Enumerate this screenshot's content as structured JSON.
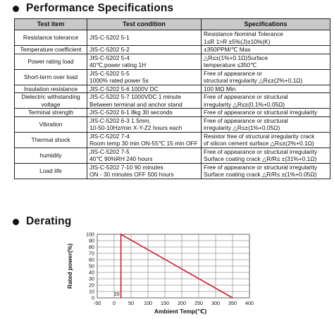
{
  "performance": {
    "title": "Performance Specifications",
    "headers": [
      "Test item",
      "Test condition",
      "Specifications"
    ],
    "rows": [
      {
        "item": [
          "Resistance tolerance"
        ],
        "condition": [
          "JIS-C-5202  5-1"
        ],
        "spec": [
          "Resistance Nominal  Tolerance",
          "1≤R  1>R ±5%(J)±10%(K)"
        ]
      },
      {
        "item": [
          "Temperature  coefficient"
        ],
        "condition": [
          "JIS-C-5202  5-2"
        ],
        "spec": [
          "±350PPM/℃     Max"
        ]
      },
      {
        "item": [
          "Power rating  load"
        ],
        "condition": [
          "JIS-C-5202  5-4",
          "40℃,power rating 1H"
        ],
        "spec": [
          "△R≤±(1%+0.1Ω)Surface",
          "temperature ≤350℃"
        ]
      },
      {
        "item": [
          "Short-term over load"
        ],
        "condition": [
          "JIS-C-5202  5-5",
          "1000% rated power 5s"
        ],
        "spec": [
          "Free of appearance or",
          "structural irregularity △R≤±(2%+0.1Ω)"
        ]
      },
      {
        "item": [
          "Insulation resistance"
        ],
        "condition": [
          "JIS-C-5202  5-6  1000V  DC"
        ],
        "spec": [
          "100 MΩ Min"
        ]
      },
      {
        "item": [
          "Dielectric withstanding",
          "voltage"
        ],
        "condition": [
          "JIS-C-5202  5-7 1000VDC 1 minute",
          "Between terminal  and anchor stand"
        ],
        "spec": [
          "Free of appearance or structural",
          "irregularity  △R≤±(0.1%+0.05Ω)"
        ]
      },
      {
        "item": [
          "Terminal strength"
        ],
        "condition": [
          "JIS-C-5202  6-1 8kg 30 seconds"
        ],
        "spec": [
          "Free of appearance or structural irregularity"
        ]
      },
      {
        "item": [
          "Vibration"
        ],
        "condition": [
          "JIS-C-5202  6-3  1.5mm,",
          "10-50-10Hz/min X-Y-Z2 hours each"
        ],
        "spec": [
          "Free of appearance or structural",
          "irregularity  △R≤±(1%+0.05Ω)"
        ]
      },
      {
        "item": [
          "Thermal  shock"
        ],
        "condition": [
          "JIS-C-5202  7-4",
          "Room temp 30 min ON-55℃ 15 min OFF"
        ],
        "spec": [
          "Resistor free of structural irregularity crack",
          "of silicon cement surface  △R≤±(2%+0.1Ω)"
        ]
      },
      {
        "item": [
          "humidity"
        ],
        "condition": [
          "JIS-C-5202  7-5",
          "40℃ 90%RH 240 hours"
        ],
        "spec": [
          "Free of appearance or structural irregularity",
          "Surface coating crack  △R/R≤ ±(31%+0.1Ω)"
        ]
      },
      {
        "item": [
          "Load life"
        ],
        "condition": [
          "JIS-C-5202  7-10  90 minutes",
          "ON - 30 minutes OFF 500 hours"
        ],
        "spec": [
          "Free of appearance or structural irregularity",
          "Surface coating crack  △R/R≤ ±(1%+0.05Ω)"
        ]
      }
    ]
  },
  "derating": {
    "title": "Derating"
  },
  "chart_data": {
    "type": "line",
    "title": "",
    "xlabel": "Ambient Temp(℃)",
    "ylabel": "Rated power(%)",
    "xlim": [
      -50,
      400
    ],
    "ylim": [
      0,
      100
    ],
    "x_ticks": [
      -50,
      0,
      50,
      100,
      150,
      200,
      250,
      300,
      350,
      400
    ],
    "y_ticks": [
      0,
      10,
      20,
      30,
      40,
      50,
      60,
      70,
      80,
      90,
      100
    ],
    "grid": true,
    "series": [
      {
        "x": [
          20,
          20,
          350
        ],
        "y": [
          0,
          100,
          0
        ],
        "color": "#cc1f2e"
      }
    ],
    "annotations": [
      {
        "text": "20",
        "x": 20,
        "y": 0
      }
    ]
  }
}
